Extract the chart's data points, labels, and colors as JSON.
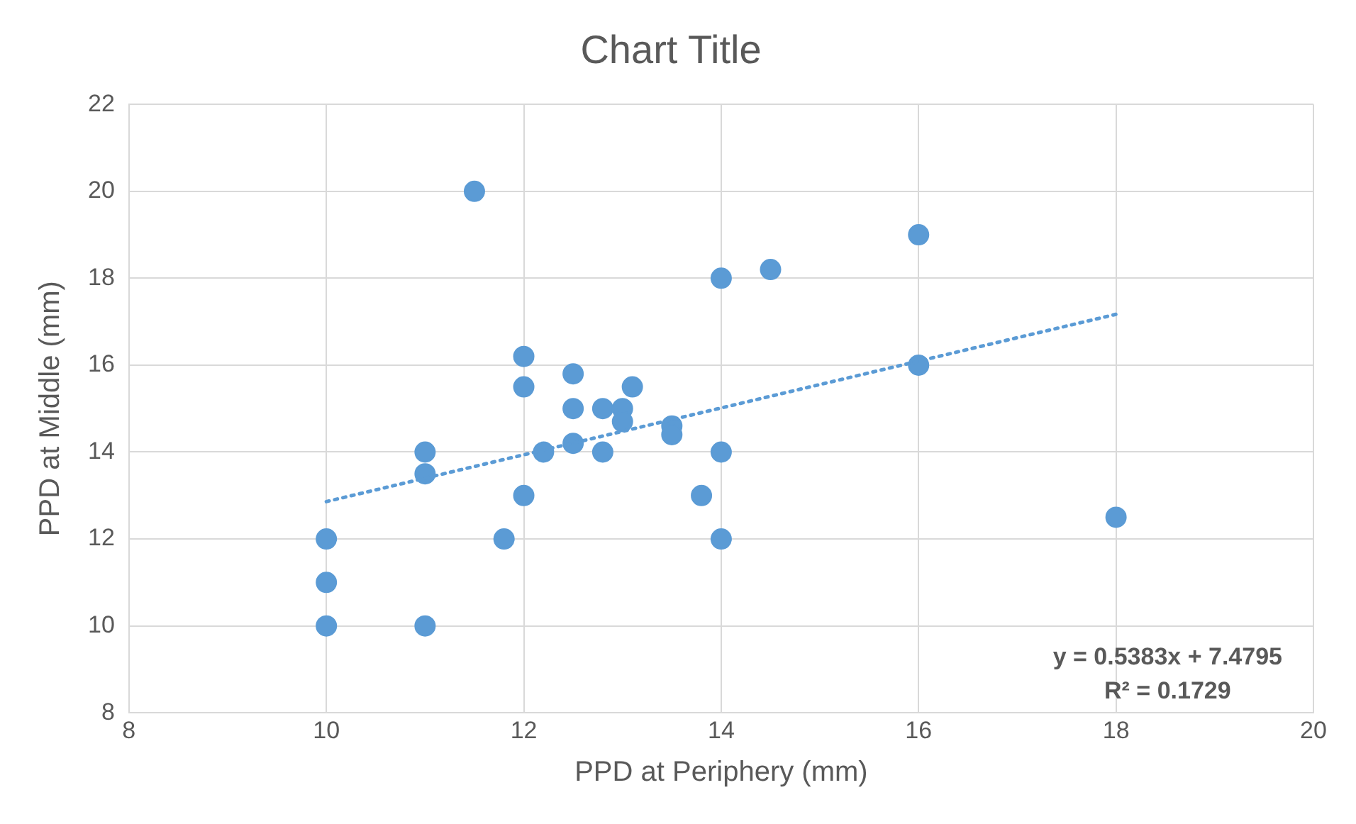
{
  "chart_data": {
    "type": "scatter",
    "title": "Chart Title",
    "xlabel": "PPD at Periphery (mm)",
    "ylabel": "PPD at Middle (mm)",
    "xlim": [
      8,
      20
    ],
    "xticks": [
      8,
      10,
      12,
      14,
      16,
      18,
      20
    ],
    "ylim": [
      8,
      22
    ],
    "yticks": [
      8,
      10,
      12,
      14,
      16,
      18,
      20,
      22
    ],
    "grid": true,
    "legend": false,
    "marker": "circle",
    "annotations": [
      "y = 0.5383x + 7.4795",
      "R² = 0.1729"
    ],
    "series": [
      {
        "color": "#5b9bd5",
        "x": [
          10,
          10,
          10,
          11,
          11,
          11,
          11.5,
          11.8,
          12,
          12,
          12,
          12.2,
          12.5,
          12.5,
          12.5,
          12.8,
          12.8,
          13,
          13,
          13.1,
          13.5,
          13.5,
          13.8,
          14,
          14,
          14,
          14.5,
          16,
          16,
          18
        ],
        "values": [
          12,
          11,
          10,
          10,
          14,
          13.5,
          20,
          12,
          16.2,
          15.5,
          13,
          14,
          15.8,
          15,
          14.2,
          15,
          14,
          15,
          14.7,
          15.5,
          14.6,
          14.4,
          13,
          18,
          14,
          12,
          18.2,
          19,
          16,
          12.5
        ]
      },
      {
        "type": "line",
        "color": "#5b9bd5",
        "line_style": "dotted",
        "marker": "none",
        "x": [
          10,
          18
        ],
        "values": [
          12.86,
          17.17
        ]
      }
    ]
  }
}
